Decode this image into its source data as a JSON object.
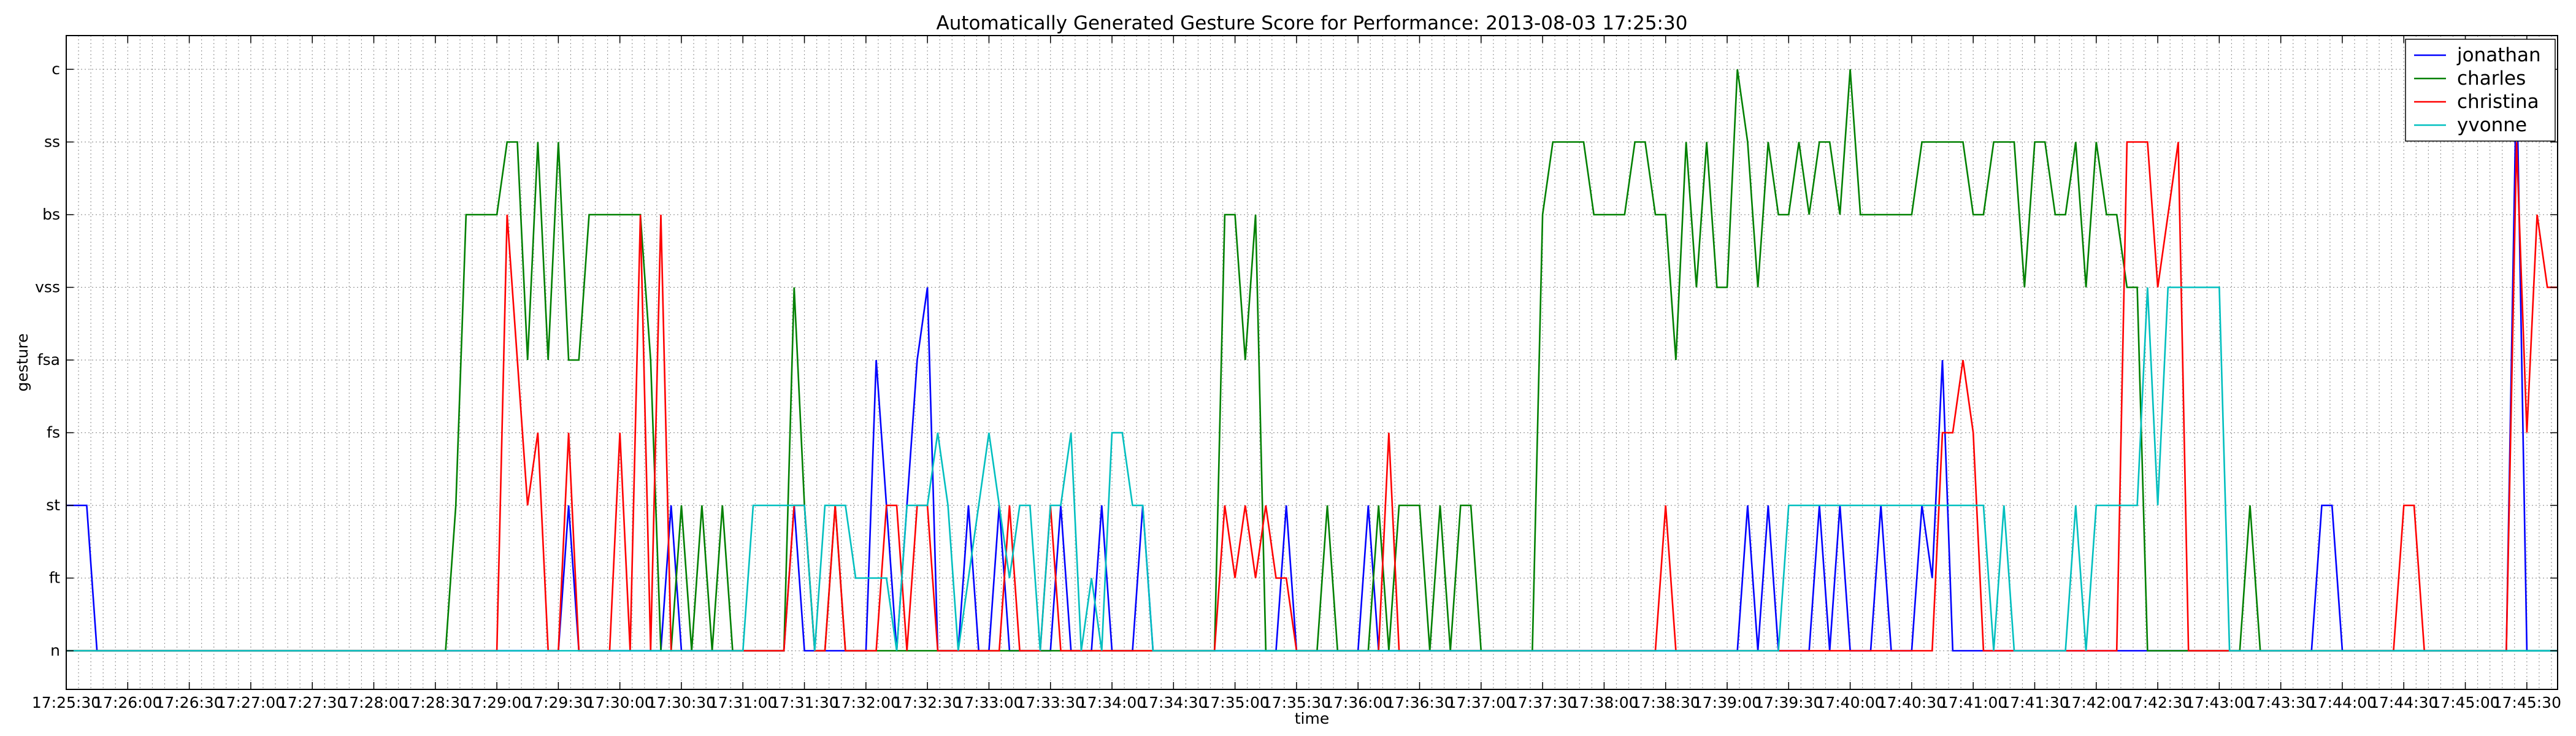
{
  "chart_data": {
    "type": "line",
    "title": "Automatically Generated Gesture Score for Performance: 2013-08-03 17:25:30",
    "xlabel": "time",
    "ylabel": "gesture",
    "grid": true,
    "legend_position": "top-right",
    "y_categories": [
      "n",
      "ft",
      "st",
      "fs",
      "fsa",
      "vss",
      "bs",
      "ss",
      "c"
    ],
    "x_tick_labels": [
      "17:25:30",
      "17:26:00",
      "17:26:30",
      "17:27:00",
      "17:27:30",
      "17:28:00",
      "17:28:30",
      "17:29:00",
      "17:29:30",
      "17:30:00",
      "17:30:30",
      "17:31:00",
      "17:31:30",
      "17:32:00",
      "17:32:30",
      "17:33:00",
      "17:33:30",
      "17:34:00",
      "17:34:30",
      "17:35:00",
      "17:35:30",
      "17:36:00",
      "17:36:30",
      "17:37:00",
      "17:37:30",
      "17:38:00",
      "17:38:30",
      "17:39:00",
      "17:39:30",
      "17:40:00",
      "17:40:30",
      "17:41:00",
      "17:41:30",
      "17:42:00",
      "17:42:30",
      "17:43:00",
      "17:43:30",
      "17:44:00",
      "17:44:30",
      "17:45:00",
      "17:45:30"
    ],
    "x_range_seconds": [
      0,
      1215
    ],
    "series": [
      {
        "name": "jonathan",
        "color": "#0000ff",
        "points": [
          [
            0,
            2
          ],
          [
            10,
            2
          ],
          [
            15,
            0
          ],
          [
            240,
            0
          ],
          [
            245,
            2
          ],
          [
            250,
            0
          ],
          [
            290,
            0
          ],
          [
            295,
            2
          ],
          [
            300,
            0
          ],
          [
            350,
            0
          ],
          [
            355,
            2
          ],
          [
            360,
            0
          ],
          [
            390,
            0
          ],
          [
            395,
            4
          ],
          [
            400,
            2
          ],
          [
            405,
            0
          ],
          [
            410,
            2
          ],
          [
            415,
            4
          ],
          [
            420,
            5
          ],
          [
            425,
            0
          ],
          [
            435,
            0
          ],
          [
            440,
            2
          ],
          [
            445,
            0
          ],
          [
            450,
            0
          ],
          [
            455,
            2
          ],
          [
            460,
            0
          ],
          [
            480,
            0
          ],
          [
            485,
            2
          ],
          [
            490,
            0
          ],
          [
            500,
            0
          ],
          [
            505,
            2
          ],
          [
            510,
            0
          ],
          [
            520,
            0
          ],
          [
            525,
            2
          ],
          [
            530,
            0
          ],
          [
            590,
            0
          ],
          [
            595,
            2
          ],
          [
            600,
            0
          ],
          [
            630,
            0
          ],
          [
            635,
            2
          ],
          [
            640,
            0
          ],
          [
            815,
            0
          ],
          [
            820,
            2
          ],
          [
            825,
            0
          ],
          [
            830,
            2
          ],
          [
            835,
            0
          ],
          [
            850,
            0
          ],
          [
            855,
            2
          ],
          [
            860,
            0
          ],
          [
            865,
            2
          ],
          [
            870,
            0
          ],
          [
            880,
            0
          ],
          [
            885,
            2
          ],
          [
            890,
            0
          ],
          [
            900,
            0
          ],
          [
            905,
            2
          ],
          [
            910,
            1
          ],
          [
            915,
            4
          ],
          [
            920,
            0
          ],
          [
            1095,
            0
          ],
          [
            1100,
            2
          ],
          [
            1105,
            2
          ],
          [
            1110,
            0
          ],
          [
            1190,
            0
          ],
          [
            1195,
            8
          ],
          [
            1200,
            0
          ],
          [
            1215,
            0
          ]
        ]
      },
      {
        "name": "charles",
        "color": "#008000",
        "points": [
          [
            0,
            0
          ],
          [
            185,
            0
          ],
          [
            190,
            2
          ],
          [
            195,
            6
          ],
          [
            210,
            6
          ],
          [
            215,
            7
          ],
          [
            220,
            7
          ],
          [
            225,
            4
          ],
          [
            230,
            7
          ],
          [
            235,
            4
          ],
          [
            240,
            7
          ],
          [
            245,
            4
          ],
          [
            250,
            4
          ],
          [
            255,
            6
          ],
          [
            280,
            6
          ],
          [
            285,
            4
          ],
          [
            290,
            0
          ],
          [
            295,
            0
          ],
          [
            300,
            2
          ],
          [
            305,
            0
          ],
          [
            310,
            2
          ],
          [
            315,
            0
          ],
          [
            320,
            2
          ],
          [
            325,
            0
          ],
          [
            350,
            0
          ],
          [
            355,
            5
          ],
          [
            360,
            2
          ],
          [
            365,
            0
          ],
          [
            370,
            0
          ],
          [
            375,
            2
          ],
          [
            380,
            0
          ],
          [
            560,
            0
          ],
          [
            565,
            6
          ],
          [
            570,
            6
          ],
          [
            575,
            4
          ],
          [
            580,
            6
          ],
          [
            585,
            0
          ],
          [
            610,
            0
          ],
          [
            615,
            2
          ],
          [
            620,
            0
          ],
          [
            635,
            0
          ],
          [
            640,
            2
          ],
          [
            645,
            0
          ],
          [
            650,
            2
          ],
          [
            660,
            2
          ],
          [
            665,
            0
          ],
          [
            670,
            2
          ],
          [
            675,
            0
          ],
          [
            680,
            2
          ],
          [
            685,
            2
          ],
          [
            690,
            0
          ],
          [
            715,
            0
          ],
          [
            720,
            6
          ],
          [
            725,
            7
          ],
          [
            740,
            7
          ],
          [
            745,
            6
          ],
          [
            760,
            6
          ],
          [
            765,
            7
          ],
          [
            770,
            7
          ],
          [
            775,
            6
          ],
          [
            780,
            6
          ],
          [
            785,
            4
          ],
          [
            790,
            7
          ],
          [
            795,
            5
          ],
          [
            800,
            7
          ],
          [
            805,
            5
          ],
          [
            810,
            5
          ],
          [
            815,
            8
          ],
          [
            820,
            7
          ],
          [
            825,
            5
          ],
          [
            830,
            7
          ],
          [
            835,
            6
          ],
          [
            840,
            6
          ],
          [
            845,
            7
          ],
          [
            850,
            6
          ],
          [
            855,
            7
          ],
          [
            860,
            7
          ],
          [
            865,
            6
          ],
          [
            870,
            8
          ],
          [
            875,
            6
          ],
          [
            900,
            6
          ],
          [
            905,
            7
          ],
          [
            925,
            7
          ],
          [
            930,
            6
          ],
          [
            935,
            6
          ],
          [
            940,
            7
          ],
          [
            950,
            7
          ],
          [
            955,
            5
          ],
          [
            960,
            7
          ],
          [
            965,
            7
          ],
          [
            970,
            6
          ],
          [
            975,
            6
          ],
          [
            980,
            7
          ],
          [
            985,
            5
          ],
          [
            990,
            7
          ],
          [
            995,
            6
          ],
          [
            1000,
            6
          ],
          [
            1005,
            5
          ],
          [
            1010,
            5
          ],
          [
            1015,
            0
          ],
          [
            1060,
            0
          ],
          [
            1065,
            2
          ],
          [
            1070,
            0
          ],
          [
            1215,
            0
          ]
        ]
      },
      {
        "name": "christina",
        "color": "#ff0000",
        "points": [
          [
            0,
            0
          ],
          [
            210,
            0
          ],
          [
            215,
            6
          ],
          [
            220,
            4
          ],
          [
            225,
            2
          ],
          [
            230,
            3
          ],
          [
            235,
            0
          ],
          [
            240,
            0
          ],
          [
            245,
            3
          ],
          [
            250,
            0
          ],
          [
            265,
            0
          ],
          [
            270,
            3
          ],
          [
            275,
            0
          ],
          [
            280,
            6
          ],
          [
            285,
            0
          ],
          [
            290,
            6
          ],
          [
            295,
            0
          ],
          [
            350,
            0
          ],
          [
            355,
            2
          ],
          [
            360,
            2
          ],
          [
            365,
            0
          ],
          [
            370,
            0
          ],
          [
            375,
            2
          ],
          [
            380,
            0
          ],
          [
            395,
            0
          ],
          [
            400,
            2
          ],
          [
            405,
            2
          ],
          [
            410,
            0
          ],
          [
            415,
            2
          ],
          [
            420,
            2
          ],
          [
            425,
            0
          ],
          [
            455,
            0
          ],
          [
            460,
            2
          ],
          [
            465,
            0
          ],
          [
            475,
            0
          ],
          [
            480,
            2
          ],
          [
            485,
            0
          ],
          [
            560,
            0
          ],
          [
            565,
            2
          ],
          [
            570,
            1
          ],
          [
            575,
            2
          ],
          [
            580,
            1
          ],
          [
            585,
            2
          ],
          [
            590,
            1
          ],
          [
            595,
            1
          ],
          [
            600,
            0
          ],
          [
            640,
            0
          ],
          [
            645,
            3
          ],
          [
            650,
            0
          ],
          [
            775,
            0
          ],
          [
            780,
            2
          ],
          [
            785,
            0
          ],
          [
            910,
            0
          ],
          [
            915,
            3
          ],
          [
            920,
            3
          ],
          [
            925,
            4
          ],
          [
            930,
            3
          ],
          [
            935,
            0
          ],
          [
            1000,
            0
          ],
          [
            1005,
            7
          ],
          [
            1015,
            7
          ],
          [
            1020,
            5
          ],
          [
            1025,
            6
          ],
          [
            1030,
            7
          ],
          [
            1035,
            0
          ],
          [
            1135,
            0
          ],
          [
            1140,
            2
          ],
          [
            1145,
            2
          ],
          [
            1150,
            0
          ],
          [
            1190,
            0
          ],
          [
            1195,
            7
          ],
          [
            1200,
            3
          ],
          [
            1205,
            6
          ],
          [
            1210,
            5
          ],
          [
            1215,
            5
          ]
        ]
      },
      {
        "name": "yvonne",
        "color": "#00bfbf",
        "points": [
          [
            0,
            0
          ],
          [
            330,
            0
          ],
          [
            335,
            2
          ],
          [
            360,
            2
          ],
          [
            365,
            0
          ],
          [
            370,
            2
          ],
          [
            380,
            2
          ],
          [
            385,
            1
          ],
          [
            395,
            1
          ],
          [
            400,
            1
          ],
          [
            405,
            0
          ],
          [
            410,
            2
          ],
          [
            420,
            2
          ],
          [
            425,
            3
          ],
          [
            430,
            2
          ],
          [
            435,
            0
          ],
          [
            440,
            1
          ],
          [
            445,
            2
          ],
          [
            450,
            3
          ],
          [
            455,
            2
          ],
          [
            460,
            1
          ],
          [
            465,
            2
          ],
          [
            470,
            2
          ],
          [
            475,
            0
          ],
          [
            480,
            2
          ],
          [
            485,
            2
          ],
          [
            490,
            3
          ],
          [
            495,
            0
          ],
          [
            500,
            1
          ],
          [
            505,
            0
          ],
          [
            510,
            3
          ],
          [
            515,
            3
          ],
          [
            520,
            2
          ],
          [
            525,
            2
          ],
          [
            530,
            0
          ],
          [
            835,
            0
          ],
          [
            840,
            2
          ],
          [
            935,
            2
          ],
          [
            940,
            0
          ],
          [
            945,
            2
          ],
          [
            950,
            0
          ],
          [
            975,
            0
          ],
          [
            980,
            2
          ],
          [
            985,
            0
          ],
          [
            990,
            2
          ],
          [
            1010,
            2
          ],
          [
            1015,
            5
          ],
          [
            1020,
            2
          ],
          [
            1025,
            5
          ],
          [
            1050,
            5
          ],
          [
            1055,
            0
          ],
          [
            1215,
            0
          ]
        ]
      }
    ]
  }
}
